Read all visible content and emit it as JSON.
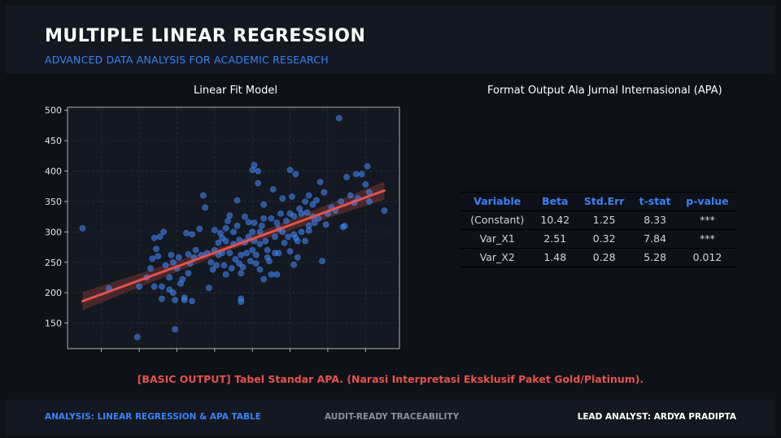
{
  "header": {
    "title": "MULTIPLE LINEAR REGRESSION",
    "subtitle": "ADVANCED DATA ANALYSIS FOR ACADEMIC RESEARCH"
  },
  "chart_panel": {
    "title": "Linear Fit Model"
  },
  "table_panel": {
    "title": "Format Output Ala Jurnal Internasional (APA)"
  },
  "table": {
    "columns": [
      "Variable",
      "Beta",
      "Std.Err",
      "t-stat",
      "p-value"
    ],
    "rows": [
      [
        "(Constant)",
        "10.42",
        "1.25",
        "8.33",
        "***"
      ],
      [
        "Var_X1",
        "2.51",
        "0.32",
        "7.84",
        "***"
      ],
      [
        "Var_X2",
        "1.48",
        "0.28",
        "5.28",
        "0.012"
      ]
    ]
  },
  "note": "[BASIC OUTPUT] Tabel Standar APA. (Narasi Interpretasi Eksklusif Paket Gold/Platinum).",
  "footer": {
    "left": "ANALYSIS: LINEAR REGRESSION & APA TABLE",
    "middle": "AUDIT-READY TRACEABILITY",
    "right": "LEAD ANALYST: ARDYA PRADIPTA"
  },
  "colors": {
    "accent": "#3b82f6",
    "points": "#3b82f6",
    "fit_line": "#e5534b",
    "background": "#0e1117",
    "panel": "#141820"
  },
  "chart_data": {
    "type": "scatter",
    "title": "Linear Fit Model",
    "xlabel": "",
    "ylabel": "",
    "xlim": [
      1,
      89
    ],
    "ylim": [
      108,
      505
    ],
    "xticks": [
      10,
      20,
      30,
      40,
      50,
      60,
      70,
      80
    ],
    "yticks": [
      150,
      200,
      250,
      300,
      350,
      400,
      450,
      500
    ],
    "grid": true,
    "fit_line": {
      "x": [
        5,
        85
      ],
      "y": [
        186,
        368
      ],
      "ci_halfwidth_ends": 15
    },
    "points": [
      [
        5,
        306
      ],
      [
        12,
        207
      ],
      [
        19.5,
        127
      ],
      [
        20,
        210
      ],
      [
        22,
        225
      ],
      [
        23,
        240
      ],
      [
        23.5,
        256
      ],
      [
        24,
        290
      ],
      [
        24,
        210
      ],
      [
        24.5,
        272
      ],
      [
        25,
        260
      ],
      [
        25.5,
        292
      ],
      [
        26,
        190
      ],
      [
        26,
        210
      ],
      [
        26.5,
        300
      ],
      [
        27,
        245
      ],
      [
        28,
        225
      ],
      [
        28,
        205
      ],
      [
        28.5,
        262
      ],
      [
        29,
        250
      ],
      [
        29,
        200
      ],
      [
        29.5,
        140
      ],
      [
        29.5,
        188
      ],
      [
        30,
        240
      ],
      [
        30.5,
        258
      ],
      [
        31,
        215
      ],
      [
        31.5,
        222
      ],
      [
        32,
        192
      ],
      [
        32,
        188
      ],
      [
        32.5,
        298
      ],
      [
        33,
        263
      ],
      [
        33,
        232
      ],
      [
        33.5,
        248
      ],
      [
        34,
        296
      ],
      [
        34,
        186
      ],
      [
        34.5,
        258
      ],
      [
        35,
        270
      ],
      [
        36,
        305
      ],
      [
        36.5,
        262
      ],
      [
        37,
        360
      ],
      [
        37.5,
        340
      ],
      [
        38,
        265
      ],
      [
        38.5,
        208
      ],
      [
        39,
        250
      ],
      [
        39.5,
        238
      ],
      [
        40,
        303
      ],
      [
        40,
        270
      ],
      [
        40.5,
        245
      ],
      [
        41,
        282
      ],
      [
        41,
        262
      ],
      [
        41.5,
        298
      ],
      [
        42,
        290
      ],
      [
        42,
        265
      ],
      [
        42.5,
        245
      ],
      [
        43,
        306
      ],
      [
        43,
        285
      ],
      [
        43,
        230
      ],
      [
        43.5,
        318
      ],
      [
        44,
        327
      ],
      [
        44,
        265
      ],
      [
        44.5,
        240
      ],
      [
        45,
        300
      ],
      [
        45,
        280
      ],
      [
        45.5,
        255
      ],
      [
        46,
        352
      ],
      [
        46,
        310
      ],
      [
        46.5,
        287
      ],
      [
        46.5,
        248
      ],
      [
        47,
        262
      ],
      [
        47,
        232
      ],
      [
        47,
        190
      ],
      [
        47,
        185
      ],
      [
        47.5,
        242
      ],
      [
        48,
        325
      ],
      [
        48,
        283
      ],
      [
        48.5,
        265
      ],
      [
        49,
        316
      ],
      [
        49,
        292
      ],
      [
        49.5,
        252
      ],
      [
        50,
        402
      ],
      [
        50,
        300
      ],
      [
        50,
        270
      ],
      [
        50.5,
        410
      ],
      [
        50.5,
        315
      ],
      [
        50.5,
        285
      ],
      [
        51,
        262
      ],
      [
        51,
        248
      ],
      [
        51.5,
        380
      ],
      [
        51.5,
        400
      ],
      [
        52,
        300
      ],
      [
        52,
        280
      ],
      [
        52,
        238
      ],
      [
        52.5,
        310
      ],
      [
        53,
        345
      ],
      [
        53,
        322
      ],
      [
        53,
        222
      ],
      [
        53.5,
        285
      ],
      [
        54,
        270
      ],
      [
        54,
        258
      ],
      [
        54.5,
        252
      ],
      [
        55,
        322
      ],
      [
        55,
        230
      ],
      [
        55.5,
        370
      ],
      [
        56,
        292
      ],
      [
        56,
        265
      ],
      [
        56.5,
        315
      ],
      [
        56.5,
        230
      ],
      [
        57,
        305
      ],
      [
        57,
        265
      ],
      [
        57.5,
        330
      ],
      [
        58,
        355
      ],
      [
        58,
        300
      ],
      [
        58.5,
        282
      ],
      [
        59,
        318
      ],
      [
        59.5,
        292
      ],
      [
        60,
        402
      ],
      [
        60,
        330
      ],
      [
        60,
        268
      ],
      [
        60.5,
        358
      ],
      [
        61,
        326
      ],
      [
        61,
        296
      ],
      [
        61,
        246
      ],
      [
        61.5,
        395
      ],
      [
        61.5,
        290
      ],
      [
        62,
        258
      ],
      [
        62,
        285
      ],
      [
        62.5,
        338
      ],
      [
        63,
        330
      ],
      [
        63,
        300
      ],
      [
        64,
        350
      ],
      [
        64,
        285
      ],
      [
        64.5,
        332
      ],
      [
        65,
        360
      ],
      [
        65,
        310
      ],
      [
        65,
        302
      ],
      [
        66,
        345
      ],
      [
        66,
        325
      ],
      [
        66.5,
        315
      ],
      [
        67,
        352
      ],
      [
        67.5,
        322
      ],
      [
        68,
        382
      ],
      [
        68.5,
        252
      ],
      [
        69,
        365
      ],
      [
        69.5,
        312
      ],
      [
        70,
        330
      ],
      [
        71,
        340
      ],
      [
        72,
        335
      ],
      [
        73,
        487
      ],
      [
        73.5,
        350
      ],
      [
        74,
        308
      ],
      [
        74.5,
        310
      ],
      [
        75,
        390
      ],
      [
        76,
        360
      ],
      [
        77,
        348
      ],
      [
        77.5,
        395
      ],
      [
        78,
        355
      ],
      [
        79,
        395
      ],
      [
        80,
        378
      ],
      [
        80.5,
        408
      ],
      [
        81,
        350
      ],
      [
        81,
        365
      ],
      [
        85,
        335
      ]
    ]
  }
}
